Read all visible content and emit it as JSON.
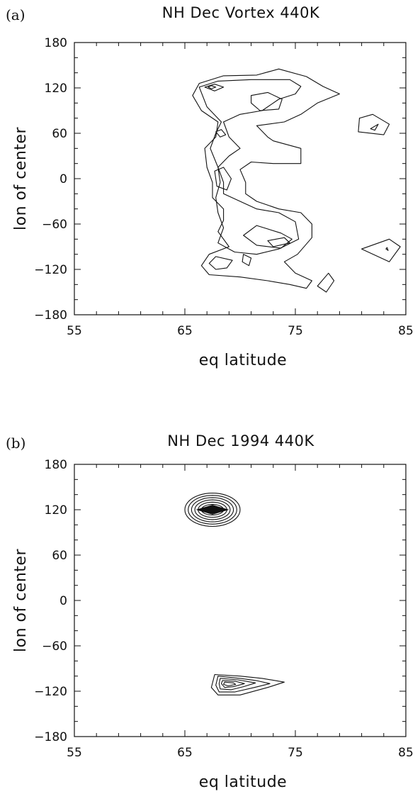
{
  "chart_data": [
    {
      "type": "contour",
      "panel_label": "(a)",
      "title": "NH Dec Vortex   440K",
      "xlabel": "eq latitude",
      "ylabel": "lon of center",
      "xlim": [
        55,
        85
      ],
      "ylim": [
        -180,
        180
      ],
      "x_ticks": [
        "55",
        "65",
        "75",
        "85"
      ],
      "y_ticks": [
        "180",
        "120",
        "60",
        "0",
        "−60",
        "−120",
        "−180"
      ],
      "contours": [
        {
          "level": 1,
          "points": [
            [
              66.3,
              126
            ],
            [
              68.5,
              136
            ],
            [
              71.5,
              137
            ],
            [
              73.5,
              145
            ],
            [
              76,
              135
            ],
            [
              77.5,
              122
            ],
            [
              79,
              112
            ],
            [
              77,
              100
            ],
            [
              75.5,
              85
            ],
            [
              74,
              75
            ],
            [
              71.5,
              70
            ],
            [
              72.5,
              55
            ],
            [
              73,
              50
            ],
            [
              75.5,
              40
            ],
            [
              75.5,
              20
            ],
            [
              73,
              20
            ],
            [
              71,
              22
            ],
            [
              70,
              12
            ],
            [
              70.5,
              -5
            ],
            [
              70.5,
              -20
            ],
            [
              71.5,
              -30
            ],
            [
              73.5,
              -40
            ],
            [
              75.5,
              -45
            ],
            [
              76.5,
              -60
            ],
            [
              76.5,
              -78
            ],
            [
              75.2,
              -100
            ],
            [
              74,
              -110
            ],
            [
              75,
              -125
            ],
            [
              76.5,
              -135
            ],
            [
              76,
              -145
            ],
            [
              74.5,
              -140
            ],
            [
              72.5,
              -135
            ],
            [
              70,
              -130
            ],
            [
              67.2,
              -127
            ],
            [
              66.5,
              -115
            ],
            [
              67.2,
              -100
            ],
            [
              69,
              -90
            ],
            [
              68,
              -70
            ],
            [
              68.5,
              -55
            ],
            [
              68.5,
              -40
            ],
            [
              67.5,
              -25
            ],
            [
              67.5,
              -5
            ],
            [
              67,
              15
            ],
            [
              66.8,
              40
            ],
            [
              67.8,
              55
            ],
            [
              68,
              75
            ],
            [
              66.5,
              90
            ],
            [
              65.7,
              110
            ],
            [
              66.3,
              126
            ]
          ]
        },
        {
          "level": 2,
          "points": [
            [
              66.3,
              121
            ],
            [
              68,
              129
            ],
            [
              71,
              131
            ],
            [
              74.5,
              131
            ],
            [
              75.5,
              122
            ],
            [
              75,
              112
            ],
            [
              73.5,
              105
            ],
            [
              72,
              90
            ],
            [
              70,
              85
            ],
            [
              68.5,
              75
            ],
            [
              69,
              55
            ],
            [
              70,
              40
            ],
            [
              69,
              30
            ],
            [
              68,
              15
            ],
            [
              68.5,
              -5
            ],
            [
              68.5,
              -20
            ],
            [
              70,
              -30
            ],
            [
              71.5,
              -40
            ],
            [
              73.5,
              -45
            ],
            [
              75,
              -57
            ],
            [
              75.3,
              -80
            ],
            [
              73.5,
              -93
            ],
            [
              71.5,
              -100
            ],
            [
              69.5,
              -97
            ],
            [
              68,
              -85
            ],
            [
              68.5,
              -65
            ],
            [
              68,
              -45
            ],
            [
              67.8,
              -25
            ],
            [
              68.2,
              -5
            ],
            [
              68,
              15
            ],
            [
              67.3,
              40
            ],
            [
              67.8,
              60
            ],
            [
              68.3,
              75
            ],
            [
              67,
              95
            ],
            [
              66.3,
              121
            ]
          ]
        },
        {
          "level": 2,
          "points": [
            [
              67.8,
              -103
            ],
            [
              69.3,
              -108
            ],
            [
              68.8,
              -118
            ],
            [
              67.8,
              -120
            ],
            [
              67.2,
              -112
            ],
            [
              67.8,
              -103
            ]
          ]
        },
        {
          "level": 3,
          "points": [
            [
              66.8,
              121
            ],
            [
              67.7,
              125
            ],
            [
              68.5,
              121
            ],
            [
              67.7,
              116
            ],
            [
              66.8,
              121
            ]
          ]
        },
        {
          "level": 3,
          "points": [
            [
              71,
              110
            ],
            [
              72.5,
              114
            ],
            [
              73.8,
              105
            ],
            [
              73.5,
              92
            ],
            [
              71.8,
              90
            ],
            [
              71,
              100
            ],
            [
              71,
              110
            ]
          ]
        },
        {
          "level": 3,
          "points": [
            [
              67.8,
              62
            ],
            [
              68.3,
              65
            ],
            [
              68.7,
              58
            ],
            [
              68.2,
              55
            ],
            [
              67.8,
              62
            ]
          ]
        },
        {
          "level": 3,
          "points": [
            [
              67.7,
              10
            ],
            [
              68.5,
              15
            ],
            [
              69.2,
              0
            ],
            [
              68.8,
              -15
            ],
            [
              67.9,
              -10
            ],
            [
              67.7,
              10
            ]
          ]
        },
        {
          "level": 3,
          "points": [
            [
              71.5,
              -62
            ],
            [
              73.7,
              -72
            ],
            [
              74.7,
              -80
            ],
            [
              73.7,
              -92
            ],
            [
              71.5,
              -88
            ],
            [
              70.3,
              -75
            ],
            [
              71.5,
              -62
            ]
          ]
        },
        {
          "level": 4,
          "points": [
            [
              72.5,
              -82
            ],
            [
              74,
              -78
            ],
            [
              74.5,
              -85
            ],
            [
              73,
              -90
            ],
            [
              72.5,
              -82
            ]
          ]
        },
        {
          "level": 3,
          "points": [
            [
              70.3,
              -100
            ],
            [
              71,
              -105
            ],
            [
              70.8,
              -115
            ],
            [
              70.2,
              -110
            ],
            [
              70.3,
              -100
            ]
          ]
        },
        {
          "level": 4,
          "points": [
            [
              67.4,
              123
            ],
            [
              67.8,
              121
            ],
            [
              67.4,
              119
            ],
            [
              67.1,
              121
            ],
            [
              67.4,
              123
            ]
          ]
        },
        {
          "level": 1,
          "points": [
            [
              77,
              -142
            ],
            [
              77.8,
              -150
            ],
            [
              78.5,
              -135
            ],
            [
              78,
              -125
            ],
            [
              77,
              -142
            ]
          ]
        },
        {
          "level": 1,
          "points": [
            [
              80.8,
              80
            ],
            [
              82,
              85
            ],
            [
              83.5,
              72
            ],
            [
              83,
              58
            ],
            [
              80.7,
              62
            ],
            [
              80.8,
              80
            ]
          ]
        },
        {
          "level": 2,
          "points": [
            [
              81.8,
              66
            ],
            [
              82.5,
              72
            ],
            [
              82.2,
              64
            ],
            [
              81.8,
              66
            ]
          ]
        },
        {
          "level": 1,
          "points": [
            [
              81,
              -93
            ],
            [
              83.5,
              -80
            ],
            [
              84.5,
              -90
            ],
            [
              83.5,
              -110
            ],
            [
              81,
              -93
            ]
          ]
        },
        {
          "level": 2,
          "points": [
            [
              83.2,
              -93
            ],
            [
              83.4,
              -95
            ],
            [
              83.3,
              -91
            ],
            [
              83.2,
              -93
            ]
          ]
        }
      ]
    },
    {
      "type": "contour",
      "panel_label": "(b)",
      "title": "NH Dec 1994      440K",
      "xlabel": "eq latitude",
      "ylabel": "lon of center",
      "xlim": [
        55,
        85
      ],
      "ylim": [
        -180,
        180
      ],
      "x_ticks": [
        "55",
        "65",
        "75",
        "85"
      ],
      "y_ticks": [
        "180",
        "120",
        "60",
        "0",
        "−60",
        "−120",
        "−180"
      ],
      "peaks": [
        {
          "name": "upper",
          "center": [
            67.5,
            120
          ],
          "semi_axes": [
            [
              2.5,
              22
            ],
            [
              2.2,
              19
            ],
            [
              1.9,
              16
            ],
            [
              1.6,
              13
            ],
            [
              1.3,
              10
            ],
            [
              1.0,
              7
            ],
            [
              0.7,
              5
            ],
            [
              0.4,
              3
            ]
          ]
        },
        {
          "name": "lower",
          "center": [
            69.0,
            -112
          ],
          "outlines": [
            [
              [
                67.7,
                -98
              ],
              [
                70,
                -100
              ],
              [
                72,
                -103
              ],
              [
                74,
                -108
              ],
              [
                72.5,
                -115
              ],
              [
                70,
                -125
              ],
              [
                68,
                -125
              ],
              [
                67.4,
                -115
              ],
              [
                67.7,
                -98
              ]
            ],
            [
              [
                68,
                -100
              ],
              [
                70,
                -103
              ],
              [
                71.5,
                -106
              ],
              [
                72.7,
                -110
              ],
              [
                71.3,
                -115
              ],
              [
                69.5,
                -121
              ],
              [
                68.1,
                -121
              ],
              [
                67.8,
                -112
              ],
              [
                68,
                -100
              ]
            ],
            [
              [
                68.2,
                -103
              ],
              [
                69.8,
                -105
              ],
              [
                71.4,
                -109
              ],
              [
                70.3,
                -114
              ],
              [
                69.2,
                -118
              ],
              [
                68.2,
                -117
              ],
              [
                68.1,
                -110
              ],
              [
                68.2,
                -103
              ]
            ],
            [
              [
                68.4,
                -106
              ],
              [
                69.6,
                -107
              ],
              [
                70.4,
                -110
              ],
              [
                69.4,
                -114
              ],
              [
                68.6,
                -115
              ],
              [
                68.3,
                -110
              ],
              [
                68.4,
                -106
              ]
            ],
            [
              [
                68.6,
                -108
              ],
              [
                69.4,
                -109
              ],
              [
                69.6,
                -111
              ],
              [
                68.9,
                -113
              ],
              [
                68.5,
                -111
              ],
              [
                68.6,
                -108
              ]
            ]
          ]
        }
      ]
    }
  ]
}
